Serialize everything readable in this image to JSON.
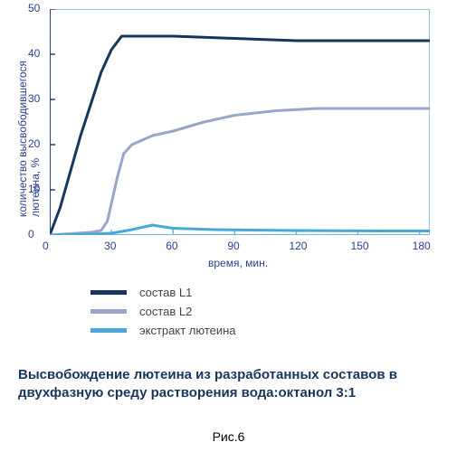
{
  "chart": {
    "type": "line",
    "xlim": [
      0,
      185
    ],
    "ylim": [
      0,
      50
    ],
    "xtick_step": 30,
    "ytick_step": 10,
    "xticks": [
      0,
      30,
      60,
      90,
      120,
      150,
      180
    ],
    "yticks": [
      0,
      10,
      20,
      30,
      40,
      50
    ],
    "xlabel": "время, мин.",
    "ylabel": "количество высвободившегося\nлютеина, %",
    "label_color": "#2a3f8f",
    "label_fontsize": 12,
    "background_color": "#ffffff",
    "grid": false,
    "axis_color": "#6fb6d6",
    "ylabel_axis_color": "#2a3f8f",
    "series": [
      {
        "name": "состав L1",
        "color": "#17365d",
        "width": 3,
        "x": [
          0,
          5,
          10,
          15,
          20,
          25,
          30,
          35,
          60,
          90,
          120,
          150,
          180,
          185
        ],
        "y": [
          0,
          6,
          14,
          22,
          29,
          36,
          41,
          44,
          44,
          43.5,
          43,
          43,
          43,
          43
        ]
      },
      {
        "name": "состав L2",
        "color": "#9aa6c9",
        "width": 3,
        "x": [
          0,
          10,
          20,
          25,
          28,
          30,
          33,
          36,
          40,
          45,
          50,
          60,
          75,
          90,
          110,
          130,
          160,
          185
        ],
        "y": [
          0,
          0.3,
          0.6,
          1,
          3,
          7,
          13,
          18,
          20,
          21,
          22,
          23,
          25,
          26.5,
          27.5,
          28,
          28,
          28
        ]
      },
      {
        "name": "экстракт лютеина",
        "color": "#4aa8d8",
        "width": 3,
        "x": [
          0,
          10,
          20,
          30,
          40,
          50,
          60,
          80,
          120,
          160,
          185
        ],
        "y": [
          0,
          0.1,
          0.2,
          0.4,
          1.2,
          2.2,
          1.5,
          1.2,
          1.0,
          0.9,
          0.9
        ]
      }
    ]
  },
  "legend": {
    "items": [
      {
        "label": "состав L1",
        "color": "#17365d"
      },
      {
        "label": "состав L2",
        "color": "#9aa6c9"
      },
      {
        "label": "экстракт лютеина",
        "color": "#4aa8d8"
      }
    ],
    "line_width": 5
  },
  "caption": {
    "text": "Высвобождение лютеина из разработанных составов в двухфазную среду растворения вода:октанол 3:1",
    "color": "#17365d"
  },
  "figure_number": "Рис.6"
}
